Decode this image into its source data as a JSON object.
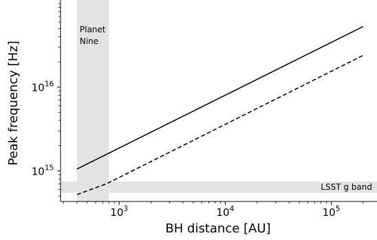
{
  "chart_data": {
    "type": "line",
    "title": "",
    "xlabel": "BH distance  [AU]",
    "ylabel": "Peak frequency  [Hz]",
    "xscale": "log",
    "yscale": "log",
    "xlim": [
      280,
      270000
    ],
    "ylim": [
      430000000000000.0,
      1.1e+17
    ],
    "x_major_ticks": [
      {
        "value": 1000,
        "base": "10",
        "exp": "3"
      },
      {
        "value": 10000,
        "base": "10",
        "exp": "4"
      },
      {
        "value": 100000,
        "base": "10",
        "exp": "5"
      }
    ],
    "y_major_ticks": [
      {
        "value": 1000000000000000.0,
        "base": "10",
        "exp": "15"
      },
      {
        "value": 1e+16,
        "base": "10",
        "exp": "16"
      }
    ],
    "grid": false,
    "legend": null,
    "series": [
      {
        "style": "solid",
        "color": "#000000",
        "x": [
          400,
          200000
        ],
        "y": [
          1050000000000000.0,
          5.3e+16
        ]
      },
      {
        "style": "dashed",
        "color": "#000000",
        "x": [
          400,
          760,
          200000
        ],
        "y": [
          520000000000000.0,
          700000000000000.0,
          2.4e+16
        ]
      }
    ],
    "shaded_regions": [
      {
        "orientation": "vertical",
        "x_range": [
          400,
          800
        ],
        "color": "#e3e3e3",
        "label_lines": [
          "Planet",
          "Nine"
        ]
      },
      {
        "orientation": "horizontal",
        "y_range": [
          545000000000000.0,
          745000000000000.0
        ],
        "color": "#e3e3e3",
        "label_lines": [
          "LSST g band"
        ]
      }
    ]
  }
}
